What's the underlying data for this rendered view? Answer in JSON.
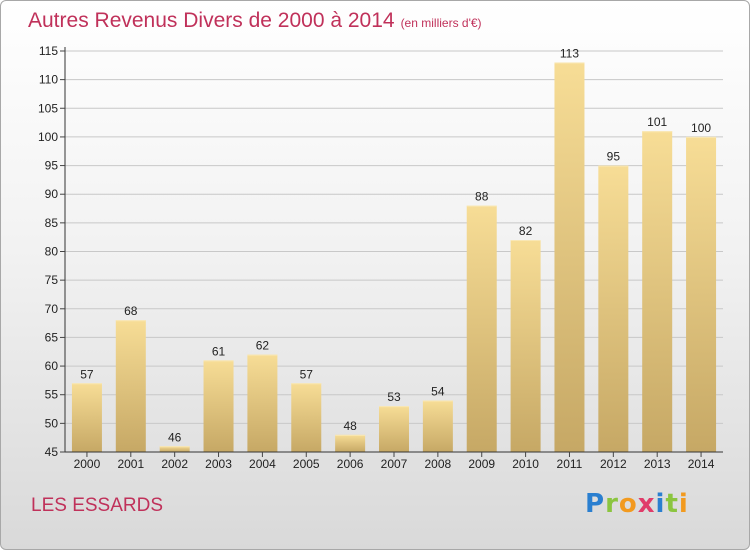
{
  "header": {
    "title": "Autres Revenus Divers de 2000 à 2014",
    "unit": "(en milliers d'€)"
  },
  "footer": {
    "city": "LES ESSARDS",
    "logo": [
      "P",
      "r",
      "o",
      "x",
      "i",
      "t",
      "i"
    ]
  },
  "colors": {
    "title": "#c0315a",
    "bar_top": "#f7dd96",
    "bar_bottom": "#c6a865",
    "grid": "#c8c8c8"
  },
  "chart_data": {
    "type": "bar",
    "title": "Autres Revenus Divers de 2000 à 2014",
    "subtitle": "(en milliers d'€)",
    "xlabel": "",
    "ylabel": "",
    "categories": [
      "2000",
      "2001",
      "2002",
      "2003",
      "2004",
      "2005",
      "2006",
      "2007",
      "2008",
      "2009",
      "2010",
      "2011",
      "2012",
      "2013",
      "2014"
    ],
    "values": [
      57,
      68,
      46,
      61,
      62,
      57,
      48,
      53,
      54,
      88,
      82,
      113,
      95,
      101,
      100
    ],
    "ylim": [
      45,
      115
    ],
    "yticks": [
      45,
      50,
      55,
      60,
      65,
      70,
      75,
      80,
      85,
      90,
      95,
      100,
      105,
      110,
      115
    ],
    "grid": true,
    "data_labels": true
  }
}
